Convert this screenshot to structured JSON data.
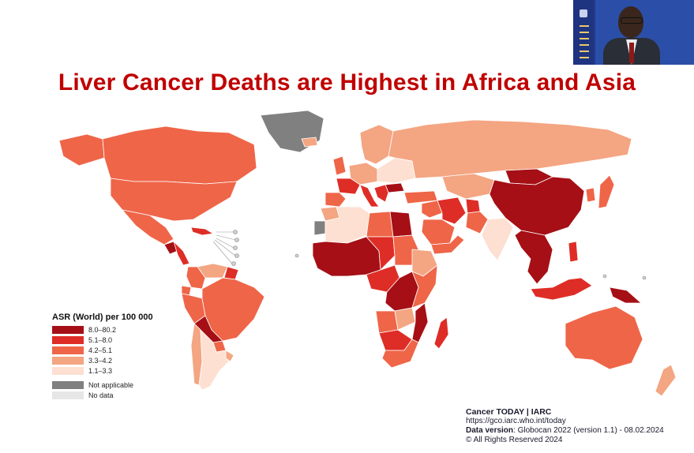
{
  "title": "Liver Cancer Deaths are Highest in Africa and Asia",
  "legend": {
    "title": "ASR (World) per 100 000",
    "items": [
      {
        "label": "8.0–80.2",
        "color": "#a50f15"
      },
      {
        "label": "5.1–8.0",
        "color": "#de2d26"
      },
      {
        "label": "4.2–5.1",
        "color": "#ef6548"
      },
      {
        "label": "3.3–4.2",
        "color": "#f4a582"
      },
      {
        "label": "1.1–3.3",
        "color": "#fde0d2"
      }
    ],
    "extra": [
      {
        "label": "Not applicable",
        "color": "#808080"
      },
      {
        "label": "No data",
        "color": "#e6e6e6"
      }
    ]
  },
  "source": {
    "brand": "Cancer TODAY | IARC",
    "url": "https://gco.iarc.who.int/today",
    "version_label": "Data version",
    "version_value": ": Globocan 2022 (version 1.1) - 08.02.2024",
    "rights": "© All Rights Reserved 2024"
  },
  "regions": [
    {
      "name": "greenland",
      "cls": "Not applicable"
    },
    {
      "name": "canada",
      "cls": "4.2–5.1"
    },
    {
      "name": "alaska",
      "cls": "4.2–5.1"
    },
    {
      "name": "usa",
      "cls": "4.2–5.1"
    },
    {
      "name": "mexico",
      "cls": "4.2–5.1"
    },
    {
      "name": "guatemala",
      "cls": "8.0–80.2"
    },
    {
      "name": "central-america",
      "cls": "5.1–8.0"
    },
    {
      "name": "caribbean",
      "cls": "5.1–8.0"
    },
    {
      "name": "colombia",
      "cls": "4.2–5.1"
    },
    {
      "name": "venezuela",
      "cls": "3.3–4.2"
    },
    {
      "name": "guianas",
      "cls": "5.1–8.0"
    },
    {
      "name": "peru",
      "cls": "4.2–5.1"
    },
    {
      "name": "ecuador",
      "cls": "4.2–5.1"
    },
    {
      "name": "brazil",
      "cls": "4.2–5.1"
    },
    {
      "name": "bolivia",
      "cls": "8.0–80.2"
    },
    {
      "name": "paraguay",
      "cls": "4.2–5.1"
    },
    {
      "name": "chile",
      "cls": "3.3–4.2"
    },
    {
      "name": "argentina",
      "cls": "1.1–3.3"
    },
    {
      "name": "uruguay",
      "cls": "3.3–4.2"
    },
    {
      "name": "iceland",
      "cls": "3.3–4.2"
    },
    {
      "name": "scandinavia",
      "cls": "3.3–4.2"
    },
    {
      "name": "uk",
      "cls": "4.2–5.1"
    },
    {
      "name": "western-europe",
      "cls": "3.3–4.2"
    },
    {
      "name": "france",
      "cls": "5.1–8.0"
    },
    {
      "name": "spain",
      "cls": "4.2–5.1"
    },
    {
      "name": "italy",
      "cls": "5.1–8.0"
    },
    {
      "name": "eastern-europe",
      "cls": "1.1–3.3"
    },
    {
      "name": "romania",
      "cls": "8.0–80.2"
    },
    {
      "name": "balkans",
      "cls": "5.1–8.0"
    },
    {
      "name": "russia",
      "cls": "3.3–4.2"
    },
    {
      "name": "turkey",
      "cls": "4.2–5.1"
    },
    {
      "name": "central-asia",
      "cls": "3.3–4.2"
    },
    {
      "name": "mongolia",
      "cls": "8.0–80.2"
    },
    {
      "name": "china",
      "cls": "8.0–80.2"
    },
    {
      "name": "korea",
      "cls": "4.2–5.1"
    },
    {
      "name": "japan",
      "cls": "4.2–5.1"
    },
    {
      "name": "middle-east",
      "cls": "4.2–5.1"
    },
    {
      "name": "iran",
      "cls": "5.1–8.0"
    },
    {
      "name": "saudi-arabia",
      "cls": "4.2–5.1"
    },
    {
      "name": "yemen-oman",
      "cls": "4.2–5.1"
    },
    {
      "name": "afghanistan",
      "cls": "5.1–8.0"
    },
    {
      "name": "pakistan",
      "cls": "4.2–5.1"
    },
    {
      "name": "india",
      "cls": "1.1–3.3"
    },
    {
      "name": "southeast-asia",
      "cls": "8.0–80.2"
    },
    {
      "name": "philippines",
      "cls": "5.1–8.0"
    },
    {
      "name": "indonesia",
      "cls": "5.1–8.0"
    },
    {
      "name": "papua-new-guinea",
      "cls": "8.0–80.2"
    },
    {
      "name": "australia",
      "cls": "4.2–5.1"
    },
    {
      "name": "new-zealand",
      "cls": "3.3–4.2"
    },
    {
      "name": "north-africa",
      "cls": "1.1–3.3"
    },
    {
      "name": "morocco",
      "cls": "3.3–4.2"
    },
    {
      "name": "libya",
      "cls": "4.2–5.1"
    },
    {
      "name": "egypt",
      "cls": "8.0–80.2"
    },
    {
      "name": "western-sahara",
      "cls": "Not applicable"
    },
    {
      "name": "west-africa",
      "cls": "8.0–80.2"
    },
    {
      "name": "chad-niger",
      "cls": "5.1–8.0"
    },
    {
      "name": "sudan",
      "cls": "4.2–5.1"
    },
    {
      "name": "ethiopia",
      "cls": "3.3–4.2"
    },
    {
      "name": "central-africa",
      "cls": "5.1–8.0"
    },
    {
      "name": "drc",
      "cls": "8.0–80.2"
    },
    {
      "name": "east-africa",
      "cls": "4.2–5.1"
    },
    {
      "name": "angola",
      "cls": "4.2–5.1"
    },
    {
      "name": "zambia",
      "cls": "3.3–4.2"
    },
    {
      "name": "mozambique",
      "cls": "8.0–80.2"
    },
    {
      "name": "namibia-botswana",
      "cls": "5.1–8.0"
    },
    {
      "name": "south-africa",
      "cls": "4.2–5.1"
    },
    {
      "name": "madagascar",
      "cls": "5.1–8.0"
    }
  ]
}
